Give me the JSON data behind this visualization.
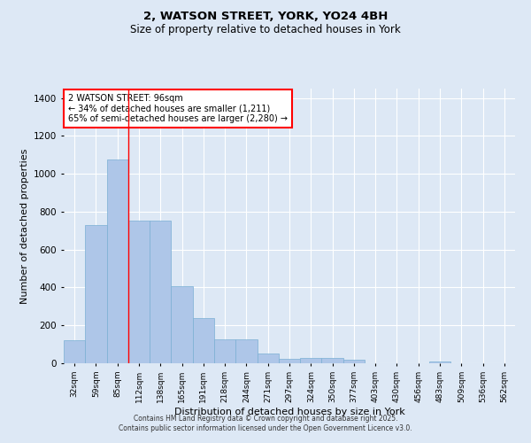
{
  "title_line1": "2, WATSON STREET, YORK, YO24 4BH",
  "title_line2": "Size of property relative to detached houses in York",
  "xlabel": "Distribution of detached houses by size in York",
  "ylabel": "Number of detached properties",
  "categories": [
    "32sqm",
    "59sqm",
    "85sqm",
    "112sqm",
    "138sqm",
    "165sqm",
    "191sqm",
    "218sqm",
    "244sqm",
    "271sqm",
    "297sqm",
    "324sqm",
    "350sqm",
    "377sqm",
    "403sqm",
    "430sqm",
    "456sqm",
    "483sqm",
    "509sqm",
    "536sqm",
    "562sqm"
  ],
  "values": [
    120,
    730,
    1075,
    755,
    755,
    405,
    240,
    125,
    125,
    50,
    25,
    30,
    30,
    20,
    0,
    0,
    0,
    10,
    0,
    0,
    0
  ],
  "bar_color": "#aec6e8",
  "bar_edgecolor": "#7aafd4",
  "annotation_text_line1": "2 WATSON STREET: 96sqm",
  "annotation_text_line2": "← 34% of detached houses are smaller (1,211)",
  "annotation_text_line3": "65% of semi-detached houses are larger (2,280) →",
  "property_line_index": 2,
  "ylim": [
    0,
    1450
  ],
  "yticks": [
    0,
    200,
    400,
    600,
    800,
    1000,
    1200,
    1400
  ],
  "background_color": "#dde8f5",
  "grid_color": "#ffffff",
  "footer_line1": "Contains HM Land Registry data © Crown copyright and database right 2025.",
  "footer_line2": "Contains public sector information licensed under the Open Government Licence v3.0."
}
